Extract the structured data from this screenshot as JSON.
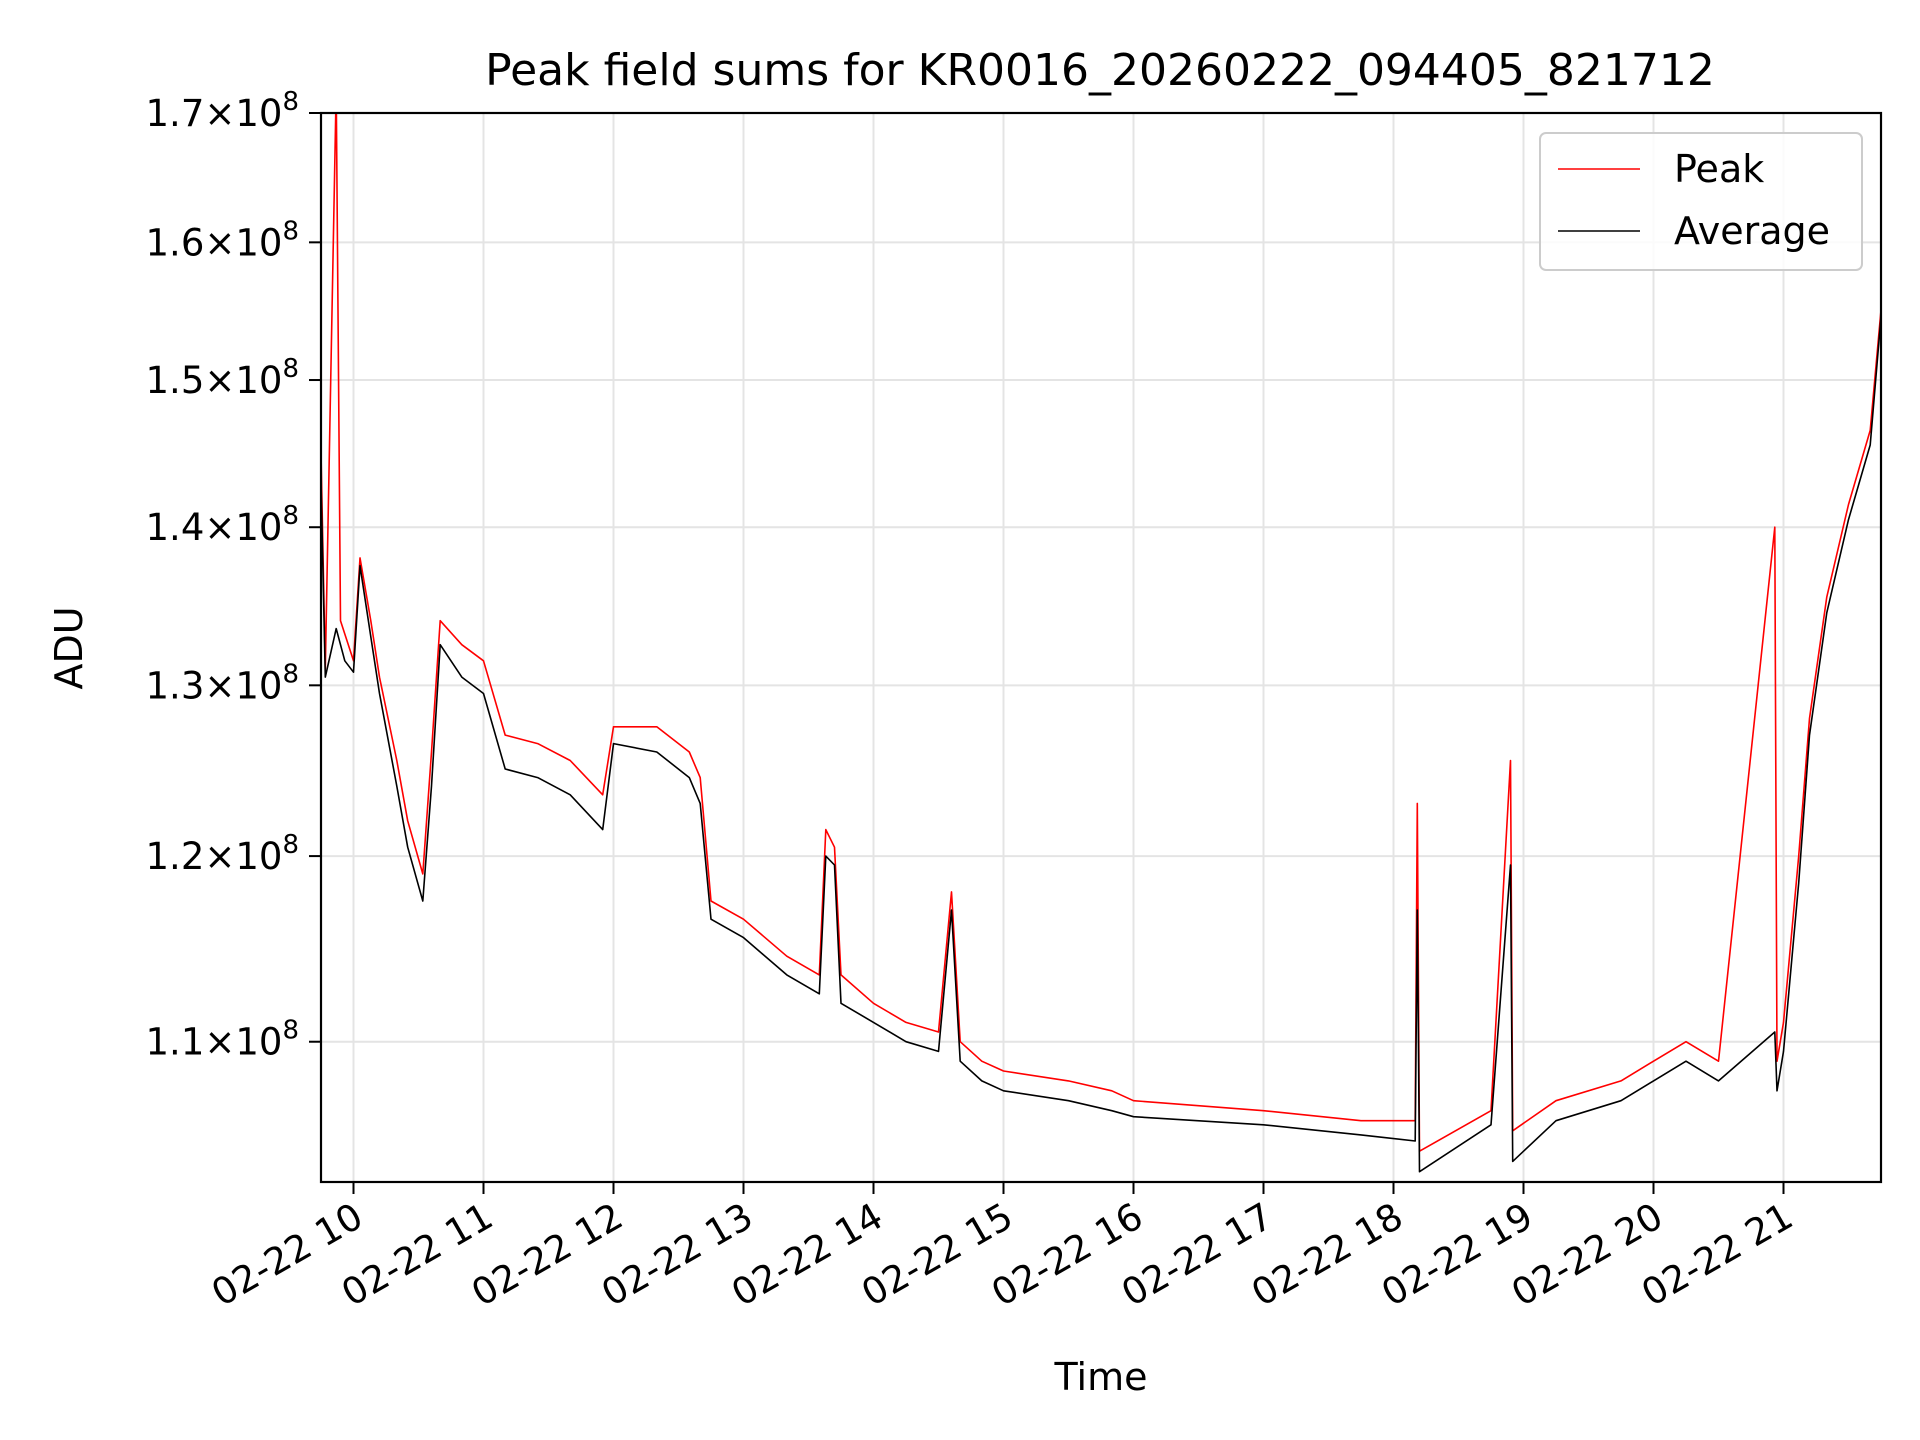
{
  "chart_data": {
    "type": "line",
    "title": "Peak field sums for KR0016_20260222_094405_821712",
    "xlabel": "Time",
    "ylabel": "ADU",
    "y_scale": "log",
    "ylim": [
      103000000,
      170000000
    ],
    "xlim": [
      "2026-02-22 09:45",
      "2026-02-22 21:45"
    ],
    "x_tick_values": [
      "2026-02-22 10:00",
      "2026-02-22 11:00",
      "2026-02-22 12:00",
      "2026-02-22 13:00",
      "2026-02-22 14:00",
      "2026-02-22 15:00",
      "2026-02-22 16:00",
      "2026-02-22 17:00",
      "2026-02-22 18:00",
      "2026-02-22 19:00",
      "2026-02-22 20:00",
      "2026-02-22 21:00"
    ],
    "x_tick_labels": [
      "02-22 10",
      "02-22 11",
      "02-22 12",
      "02-22 13",
      "02-22 14",
      "02-22 15",
      "02-22 16",
      "02-22 17",
      "02-22 18",
      "02-22 19",
      "02-22 20",
      "02-22 21"
    ],
    "y_ticks": [
      {
        "value": 110000000,
        "mant": "1.1",
        "exp": "8"
      },
      {
        "value": 120000000,
        "mant": "1.2",
        "exp": "8"
      },
      {
        "value": 130000000,
        "mant": "1.3",
        "exp": "8"
      },
      {
        "value": 140000000,
        "mant": "1.4",
        "exp": "8"
      },
      {
        "value": 150000000,
        "mant": "1.5",
        "exp": "8"
      },
      {
        "value": 160000000,
        "mant": "1.6",
        "exp": "8"
      },
      {
        "value": 170000000,
        "mant": "1.7",
        "exp": "8"
      }
    ],
    "grid": true,
    "legend_position": "top-right",
    "series": [
      {
        "name": "Peak",
        "color": "#ff0000",
        "points": [
          [
            "2026-02-22 09:45",
            145000000
          ],
          [
            "2026-02-22 09:47",
            131000000
          ],
          [
            "2026-02-22 09:52",
            172000000
          ],
          [
            "2026-02-22 09:54",
            134000000
          ],
          [
            "2026-02-22 10:00",
            131500000
          ],
          [
            "2026-02-22 10:03",
            138000000
          ],
          [
            "2026-02-22 10:08",
            134000000
          ],
          [
            "2026-02-22 10:12",
            130500000
          ],
          [
            "2026-02-22 10:20",
            125500000
          ],
          [
            "2026-02-22 10:25",
            122000000
          ],
          [
            "2026-02-22 10:32",
            119000000
          ],
          [
            "2026-02-22 10:36",
            126000000
          ],
          [
            "2026-02-22 10:40",
            134000000
          ],
          [
            "2026-02-22 10:50",
            132500000
          ],
          [
            "2026-02-22 11:00",
            131500000
          ],
          [
            "2026-02-22 11:10",
            127000000
          ],
          [
            "2026-02-22 11:25",
            126500000
          ],
          [
            "2026-02-22 11:40",
            125500000
          ],
          [
            "2026-02-22 11:55",
            123500000
          ],
          [
            "2026-02-22 12:00",
            127500000
          ],
          [
            "2026-02-22 12:20",
            127500000
          ],
          [
            "2026-02-22 12:35",
            126000000
          ],
          [
            "2026-02-22 12:40",
            124500000
          ],
          [
            "2026-02-22 12:45",
            117500000
          ],
          [
            "2026-02-22 13:00",
            116500000
          ],
          [
            "2026-02-22 13:20",
            114500000
          ],
          [
            "2026-02-22 13:35",
            113500000
          ],
          [
            "2026-02-22 13:38",
            121500000
          ],
          [
            "2026-02-22 13:42",
            120500000
          ],
          [
            "2026-02-22 13:45",
            113500000
          ],
          [
            "2026-02-22 14:00",
            112000000
          ],
          [
            "2026-02-22 14:15",
            111000000
          ],
          [
            "2026-02-22 14:30",
            110500000
          ],
          [
            "2026-02-22 14:36",
            118000000
          ],
          [
            "2026-02-22 14:40",
            110000000
          ],
          [
            "2026-02-22 14:50",
            109000000
          ],
          [
            "2026-02-22 15:00",
            108500000
          ],
          [
            "2026-02-22 15:30",
            108000000
          ],
          [
            "2026-02-22 15:50",
            107500000
          ],
          [
            "2026-02-22 16:00",
            107000000
          ],
          [
            "2026-02-22 17:00",
            106500000
          ],
          [
            "2026-02-22 17:45",
            106000000
          ],
          [
            "2026-02-22 18:10",
            106000000
          ],
          [
            "2026-02-22 18:11",
            123000000
          ],
          [
            "2026-02-22 18:12",
            104500000
          ],
          [
            "2026-02-22 18:45",
            106500000
          ],
          [
            "2026-02-22 18:54",
            125500000
          ],
          [
            "2026-02-22 18:55",
            105500000
          ],
          [
            "2026-02-22 19:15",
            107000000
          ],
          [
            "2026-02-22 19:45",
            108000000
          ],
          [
            "2026-02-22 20:00",
            109000000
          ],
          [
            "2026-02-22 20:15",
            110000000
          ],
          [
            "2026-02-22 20:30",
            109000000
          ],
          [
            "2026-02-22 20:56",
            140000000
          ],
          [
            "2026-02-22 20:57",
            109000000
          ],
          [
            "2026-02-22 21:00",
            111000000
          ],
          [
            "2026-02-22 21:07",
            120000000
          ],
          [
            "2026-02-22 21:12",
            128000000
          ],
          [
            "2026-02-22 21:20",
            135500000
          ],
          [
            "2026-02-22 21:30",
            141500000
          ],
          [
            "2026-02-22 21:40",
            146500000
          ],
          [
            "2026-02-22 21:45",
            155000000
          ]
        ]
      },
      {
        "name": "Average",
        "color": "#000000",
        "points": [
          [
            "2026-02-22 09:45",
            143000000
          ],
          [
            "2026-02-22 09:47",
            130500000
          ],
          [
            "2026-02-22 09:52",
            133500000
          ],
          [
            "2026-02-22 09:56",
            131500000
          ],
          [
            "2026-02-22 10:00",
            130800000
          ],
          [
            "2026-02-22 10:03",
            137500000
          ],
          [
            "2026-02-22 10:08",
            133000000
          ],
          [
            "2026-02-22 10:12",
            129500000
          ],
          [
            "2026-02-22 10:20",
            124000000
          ],
          [
            "2026-02-22 10:25",
            120500000
          ],
          [
            "2026-02-22 10:32",
            117500000
          ],
          [
            "2026-02-22 10:36",
            124000000
          ],
          [
            "2026-02-22 10:40",
            132500000
          ],
          [
            "2026-02-22 10:50",
            130500000
          ],
          [
            "2026-02-22 11:00",
            129500000
          ],
          [
            "2026-02-22 11:10",
            125000000
          ],
          [
            "2026-02-22 11:25",
            124500000
          ],
          [
            "2026-02-22 11:40",
            123500000
          ],
          [
            "2026-02-22 11:55",
            121500000
          ],
          [
            "2026-02-22 12:00",
            126500000
          ],
          [
            "2026-02-22 12:20",
            126000000
          ],
          [
            "2026-02-22 12:35",
            124500000
          ],
          [
            "2026-02-22 12:40",
            123000000
          ],
          [
            "2026-02-22 12:45",
            116500000
          ],
          [
            "2026-02-22 13:00",
            115500000
          ],
          [
            "2026-02-22 13:20",
            113500000
          ],
          [
            "2026-02-22 13:35",
            112500000
          ],
          [
            "2026-02-22 13:38",
            120000000
          ],
          [
            "2026-02-22 13:42",
            119500000
          ],
          [
            "2026-02-22 13:45",
            112000000
          ],
          [
            "2026-02-22 14:00",
            111000000
          ],
          [
            "2026-02-22 14:15",
            110000000
          ],
          [
            "2026-02-22 14:30",
            109500000
          ],
          [
            "2026-02-22 14:36",
            117000000
          ],
          [
            "2026-02-22 14:40",
            109000000
          ],
          [
            "2026-02-22 14:50",
            108000000
          ],
          [
            "2026-02-22 15:00",
            107500000
          ],
          [
            "2026-02-22 15:30",
            107000000
          ],
          [
            "2026-02-22 15:50",
            106500000
          ],
          [
            "2026-02-22 16:00",
            106200000
          ],
          [
            "2026-02-22 17:00",
            105800000
          ],
          [
            "2026-02-22 17:45",
            105300000
          ],
          [
            "2026-02-22 18:10",
            105000000
          ],
          [
            "2026-02-22 18:11",
            117000000
          ],
          [
            "2026-02-22 18:12",
            103500000
          ],
          [
            "2026-02-22 18:45",
            105800000
          ],
          [
            "2026-02-22 18:54",
            119500000
          ],
          [
            "2026-02-22 18:55",
            104000000
          ],
          [
            "2026-02-22 19:15",
            106000000
          ],
          [
            "2026-02-22 19:45",
            107000000
          ],
          [
            "2026-02-22 20:00",
            108000000
          ],
          [
            "2026-02-22 20:15",
            109000000
          ],
          [
            "2026-02-22 20:30",
            108000000
          ],
          [
            "2026-02-22 20:56",
            110500000
          ],
          [
            "2026-02-22 20:57",
            107500000
          ],
          [
            "2026-02-22 21:00",
            109500000
          ],
          [
            "2026-02-22 21:07",
            118500000
          ],
          [
            "2026-02-22 21:12",
            127000000
          ],
          [
            "2026-02-22 21:20",
            134500000
          ],
          [
            "2026-02-22 21:30",
            140500000
          ],
          [
            "2026-02-22 21:40",
            145500000
          ],
          [
            "2026-02-22 21:45",
            154500000
          ]
        ]
      }
    ]
  }
}
